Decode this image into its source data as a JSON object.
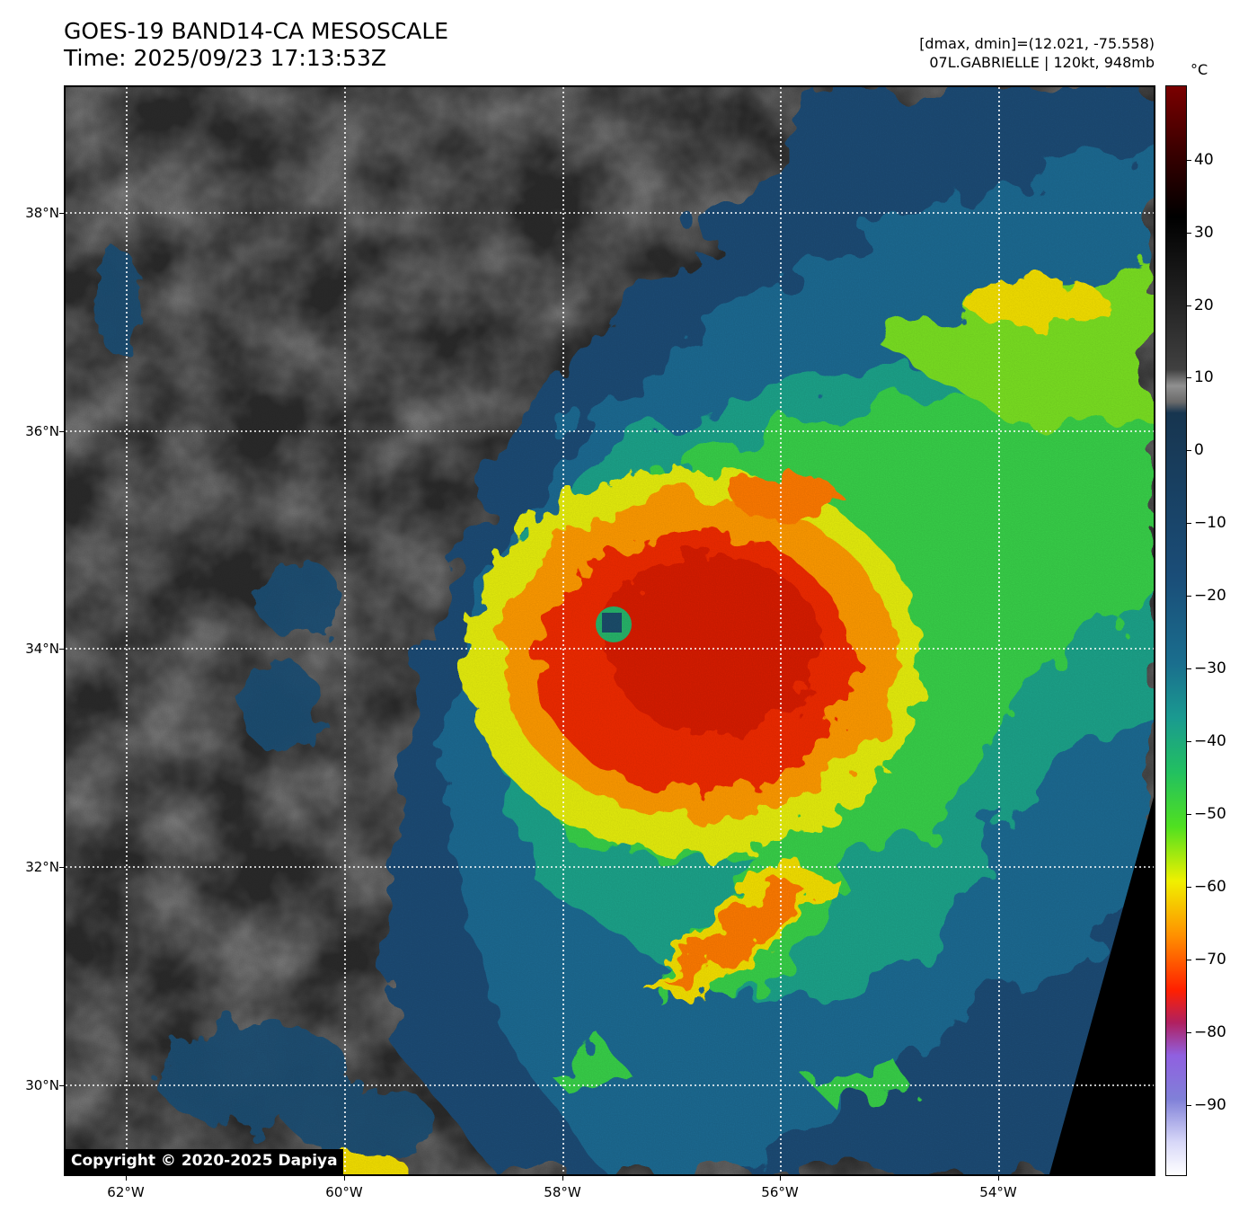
{
  "header": {
    "title_line1": "GOES-19 BAND14-CA MESOSCALE",
    "title_line2": "Time: 2025/09/23 17:13:53Z",
    "info_line1": "[dmax, dmin]=(12.021, -75.558)",
    "info_line2": "07L.GABRIELLE | 120kt, 948mb"
  },
  "colorbar": {
    "unit": "°C",
    "ticks": [
      "40",
      "30",
      "20",
      "10",
      "0",
      "−10",
      "−20",
      "−30",
      "−40",
      "−50",
      "−60",
      "−70",
      "−80",
      "−90"
    ]
  },
  "axes": {
    "lat_labels": [
      "38°N",
      "36°N",
      "34°N",
      "32°N",
      "30°N"
    ],
    "lon_labels": [
      "62°W",
      "60°W",
      "58°W",
      "56°W",
      "54°W"
    ]
  },
  "storm": {
    "name": "GABRIELLE",
    "eye_color": "#1b4d6b"
  },
  "copyright": "Copyright © 2020-2025 Dapiya"
}
